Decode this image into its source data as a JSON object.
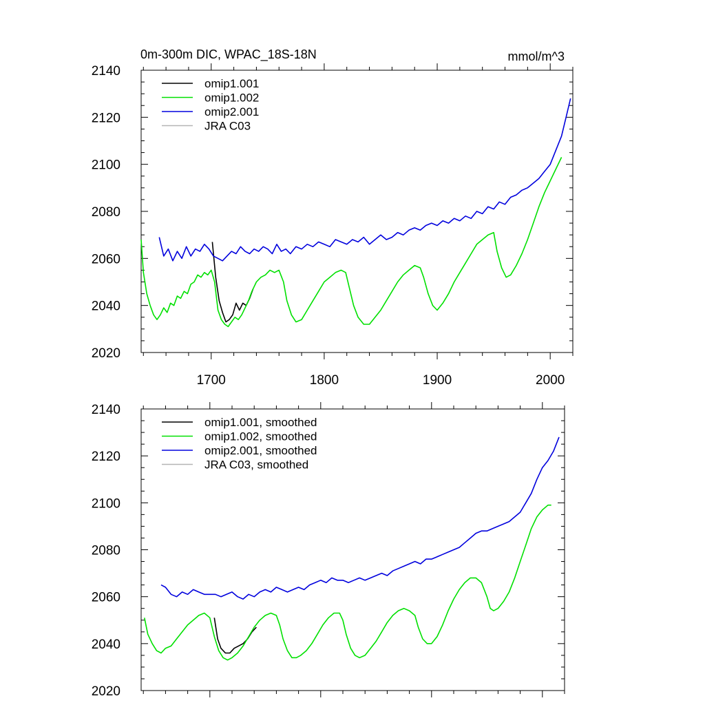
{
  "figure": {
    "title_left": "0m-300m DIC, WPAC_18S-18N",
    "title_right": "mmol/m^3"
  },
  "colors": {
    "omip1_001": "#000000",
    "omip1_002": "#00e000",
    "omip2_001": "#0000dd",
    "jra_c03": "#b4b4b4"
  },
  "chart_data": [
    {
      "type": "line",
      "panel": "top",
      "title": "0m-300m DIC, WPAC_18S-18N",
      "units": "mmol/m^3",
      "xlim": [
        1638,
        2020
      ],
      "ylim": [
        2020,
        2140
      ],
      "xticks": [
        1700,
        1800,
        1900,
        2000
      ],
      "xtick_labels": [
        "1700",
        "1800",
        "1900",
        "2000"
      ],
      "yticks": [
        2020,
        2040,
        2060,
        2080,
        2100,
        2120,
        2140
      ],
      "ytick_labels": [
        "2020",
        "2040",
        "2060",
        "2080",
        "2100",
        "2120",
        "2140"
      ],
      "legend": {
        "placement": "top-left",
        "entries": [
          "omip1.001",
          "omip1.002",
          "omip2.001",
          "JRA C03"
        ]
      },
      "series": [
        {
          "name": "omip1.001",
          "color": "#000000",
          "x": [
            1701,
            1704,
            1707,
            1710,
            1713,
            1716,
            1719,
            1722,
            1725,
            1728,
            1731,
            1734,
            1737
          ],
          "values": [
            2067,
            2052,
            2042,
            2037,
            2033,
            2034,
            2036,
            2041,
            2038,
            2041,
            2040,
            2043,
            2047
          ]
        },
        {
          "name": "omip1.002",
          "color": "#00e000",
          "x": [
            1638,
            1640,
            1643,
            1646,
            1649,
            1652,
            1655,
            1658,
            1661,
            1664,
            1667,
            1670,
            1673,
            1676,
            1679,
            1682,
            1685,
            1688,
            1691,
            1694,
            1697,
            1700,
            1703,
            1706,
            1709,
            1712,
            1715,
            1718,
            1721,
            1724,
            1727,
            1730,
            1733,
            1736,
            1740,
            1744,
            1748,
            1752,
            1756,
            1760,
            1764,
            1767,
            1771,
            1775,
            1780,
            1785,
            1790,
            1795,
            1800,
            1805,
            1810,
            1815,
            1819,
            1822,
            1826,
            1830,
            1835,
            1840,
            1845,
            1850,
            1855,
            1860,
            1865,
            1870,
            1875,
            1880,
            1885,
            1888,
            1892,
            1896,
            1900,
            1905,
            1910,
            1915,
            1920,
            1925,
            1930,
            1935,
            1940,
            1945,
            1950,
            1953,
            1957,
            1961,
            1965,
            1970,
            1975,
            1980,
            1985,
            1990,
            1995,
            2000,
            2005,
            2010
          ],
          "values": [
            2068,
            2054,
            2045,
            2040,
            2036,
            2034,
            2036,
            2039,
            2037,
            2041,
            2040,
            2044,
            2043,
            2046,
            2045,
            2049,
            2050,
            2053,
            2052,
            2054,
            2053,
            2055,
            2050,
            2038,
            2034,
            2032,
            2031,
            2033,
            2035,
            2034,
            2036,
            2039,
            2042,
            2046,
            2050,
            2052,
            2053,
            2055,
            2054,
            2055,
            2050,
            2042,
            2036,
            2033,
            2034,
            2038,
            2042,
            2046,
            2050,
            2052,
            2054,
            2055,
            2054,
            2048,
            2040,
            2035,
            2032,
            2032,
            2035,
            2038,
            2042,
            2046,
            2050,
            2053,
            2055,
            2057,
            2056,
            2052,
            2045,
            2040,
            2038,
            2041,
            2045,
            2050,
            2054,
            2058,
            2062,
            2066,
            2068,
            2070,
            2071,
            2063,
            2056,
            2052,
            2053,
            2057,
            2062,
            2068,
            2075,
            2082,
            2088,
            2093,
            2098,
            2103
          ]
        },
        {
          "name": "omip2.001",
          "color": "#0000dd",
          "x": [
            1654,
            1658,
            1662,
            1666,
            1670,
            1674,
            1678,
            1682,
            1686,
            1690,
            1694,
            1698,
            1702,
            1706,
            1710,
            1714,
            1718,
            1722,
            1726,
            1730,
            1734,
            1738,
            1742,
            1746,
            1750,
            1754,
            1758,
            1762,
            1766,
            1770,
            1775,
            1780,
            1785,
            1790,
            1795,
            1800,
            1805,
            1810,
            1815,
            1820,
            1825,
            1830,
            1835,
            1840,
            1845,
            1850,
            1855,
            1860,
            1865,
            1870,
            1875,
            1880,
            1885,
            1890,
            1895,
            1900,
            1905,
            1910,
            1915,
            1920,
            1925,
            1930,
            1935,
            1940,
            1945,
            1950,
            1955,
            1960,
            1965,
            1970,
            1975,
            1980,
            1985,
            1990,
            1995,
            2000,
            2005,
            2010,
            2014,
            2018
          ],
          "values": [
            2069,
            2061,
            2064,
            2059,
            2063,
            2060,
            2065,
            2061,
            2064,
            2063,
            2066,
            2064,
            2061,
            2060,
            2059,
            2061,
            2063,
            2062,
            2065,
            2063,
            2062,
            2064,
            2063,
            2065,
            2064,
            2062,
            2066,
            2063,
            2064,
            2062,
            2065,
            2064,
            2066,
            2065,
            2067,
            2066,
            2065,
            2068,
            2067,
            2066,
            2068,
            2067,
            2069,
            2066,
            2068,
            2070,
            2068,
            2069,
            2071,
            2070,
            2072,
            2073,
            2072,
            2074,
            2075,
            2074,
            2076,
            2075,
            2077,
            2076,
            2078,
            2077,
            2080,
            2079,
            2082,
            2081,
            2084,
            2083,
            2086,
            2087,
            2089,
            2090,
            2092,
            2094,
            2097,
            2100,
            2106,
            2112,
            2120,
            2128
          ]
        }
      ]
    },
    {
      "type": "line",
      "panel": "bottom",
      "xlim": [
        1638,
        2020
      ],
      "ylim": [
        2020,
        2140
      ],
      "xticks": [
        1700,
        1800,
        1900,
        2000
      ],
      "yticks": [
        2020,
        2040,
        2060,
        2080,
        2100,
        2120,
        2140
      ],
      "ytick_labels": [
        "2020",
        "2040",
        "2060",
        "2080",
        "2100",
        "2120",
        "2140"
      ],
      "legend": {
        "placement": "top-left",
        "entries": [
          "omip1.001, smoothed",
          "omip1.002, smoothed",
          "omip2.001, smoothed",
          "JRA C03, smoothed"
        ]
      },
      "series": [
        {
          "name": "omip1.001, smoothed",
          "color": "#000000",
          "x": [
            1704,
            1707,
            1710,
            1714,
            1718,
            1722,
            1726,
            1730,
            1734,
            1738,
            1742
          ],
          "values": [
            2051,
            2042,
            2038,
            2036,
            2036,
            2038,
            2039,
            2040,
            2042,
            2045,
            2047
          ]
        },
        {
          "name": "omip1.002, smoothed",
          "color": "#00e000",
          "x": [
            1641,
            1644,
            1648,
            1652,
            1656,
            1660,
            1665,
            1670,
            1675,
            1680,
            1685,
            1690,
            1695,
            1700,
            1704,
            1708,
            1712,
            1716,
            1720,
            1725,
            1730,
            1735,
            1740,
            1745,
            1750,
            1755,
            1760,
            1763,
            1766,
            1770,
            1774,
            1778,
            1782,
            1787,
            1792,
            1797,
            1802,
            1807,
            1812,
            1817,
            1820,
            1823,
            1827,
            1831,
            1835,
            1840,
            1845,
            1850,
            1855,
            1860,
            1865,
            1870,
            1875,
            1880,
            1885,
            1888,
            1892,
            1896,
            1900,
            1905,
            1910,
            1915,
            1920,
            1925,
            1930,
            1935,
            1940,
            1945,
            1950,
            1953,
            1956,
            1960,
            1965,
            1970,
            1975,
            1980,
            1985,
            1990,
            1995,
            2000,
            2005,
            2008
          ],
          "values": [
            2051,
            2044,
            2040,
            2037,
            2036,
            2038,
            2039,
            2042,
            2045,
            2048,
            2050,
            2052,
            2053,
            2051,
            2043,
            2037,
            2034,
            2033,
            2034,
            2036,
            2039,
            2043,
            2047,
            2050,
            2052,
            2053,
            2052,
            2048,
            2042,
            2037,
            2034,
            2034,
            2035,
            2037,
            2040,
            2044,
            2048,
            2051,
            2053,
            2053,
            2050,
            2044,
            2038,
            2035,
            2034,
            2035,
            2038,
            2041,
            2045,
            2049,
            2052,
            2054,
            2055,
            2054,
            2052,
            2047,
            2042,
            2040,
            2040,
            2043,
            2048,
            2054,
            2059,
            2063,
            2066,
            2068,
            2068,
            2066,
            2060,
            2055,
            2054,
            2055,
            2058,
            2062,
            2068,
            2075,
            2082,
            2089,
            2094,
            2097,
            2099,
            2099
          ]
        },
        {
          "name": "omip2.001, smoothed",
          "color": "#0000dd",
          "x": [
            1656,
            1660,
            1665,
            1670,
            1675,
            1680,
            1685,
            1690,
            1695,
            1700,
            1705,
            1710,
            1715,
            1720,
            1725,
            1730,
            1735,
            1740,
            1745,
            1750,
            1755,
            1760,
            1765,
            1770,
            1775,
            1780,
            1785,
            1790,
            1795,
            1800,
            1805,
            1810,
            1815,
            1820,
            1825,
            1830,
            1835,
            1840,
            1845,
            1850,
            1855,
            1860,
            1865,
            1870,
            1875,
            1880,
            1885,
            1890,
            1895,
            1900,
            1905,
            1910,
            1915,
            1920,
            1925,
            1930,
            1935,
            1940,
            1945,
            1950,
            1955,
            1960,
            1965,
            1970,
            1975,
            1980,
            1985,
            1990,
            1995,
            2000,
            2005,
            2010,
            2015
          ],
          "values": [
            2065,
            2064,
            2061,
            2060,
            2062,
            2061,
            2063,
            2062,
            2061,
            2061,
            2061,
            2060,
            2061,
            2062,
            2060,
            2059,
            2061,
            2060,
            2062,
            2063,
            2062,
            2064,
            2063,
            2062,
            2063,
            2064,
            2063,
            2065,
            2066,
            2067,
            2066,
            2068,
            2067,
            2067,
            2066,
            2067,
            2068,
            2067,
            2068,
            2069,
            2070,
            2069,
            2071,
            2072,
            2073,
            2074,
            2075,
            2074,
            2076,
            2076,
            2077,
            2078,
            2079,
            2080,
            2081,
            2083,
            2085,
            2087,
            2088,
            2088,
            2089,
            2090,
            2091,
            2092,
            2094,
            2096,
            2100,
            2104,
            2110,
            2115,
            2118,
            2122,
            2128
          ]
        }
      ]
    }
  ]
}
